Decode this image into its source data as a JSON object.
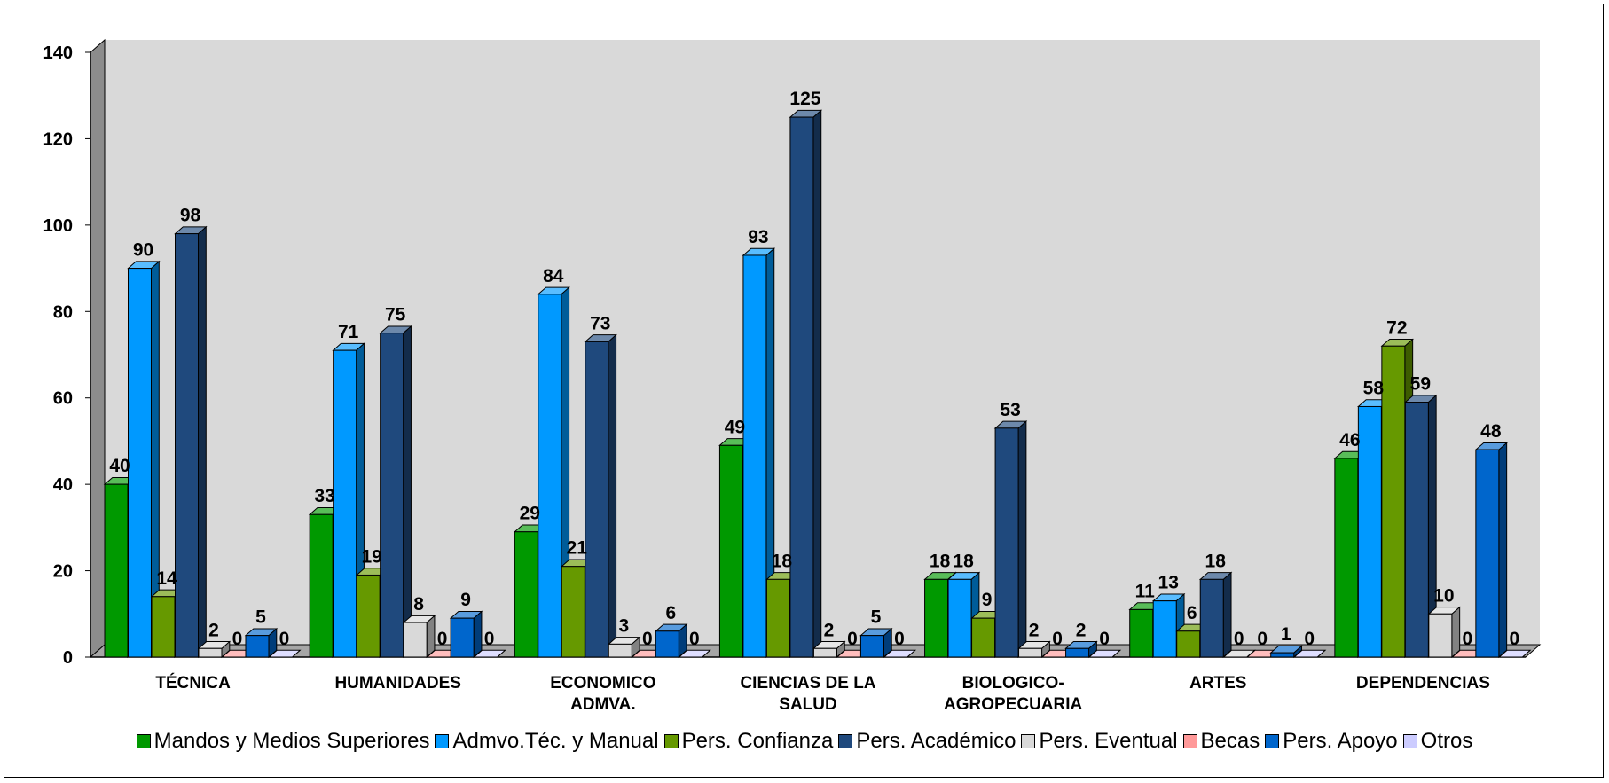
{
  "chart_data": {
    "type": "bar",
    "categories": [
      [
        "TÉCNICA"
      ],
      [
        "HUMANIDADES"
      ],
      [
        "ECONOMICO",
        "ADMVA."
      ],
      [
        "CIENCIAS DE LA",
        "SALUD"
      ],
      [
        "BIOLOGICO-",
        "AGROPECUARIA"
      ],
      [
        "ARTES"
      ],
      [
        "DEPENDENCIAS"
      ]
    ],
    "series": [
      {
        "name": "Mandos y Medios Superiores",
        "color": "#009900",
        "values": [
          40,
          33,
          29,
          49,
          18,
          11,
          46
        ]
      },
      {
        "name": "Admvo.Téc. y Manual",
        "color": "#0099ff",
        "values": [
          90,
          71,
          84,
          93,
          18,
          13,
          58
        ]
      },
      {
        "name": "Pers. Confianza",
        "color": "#669900",
        "values": [
          14,
          19,
          21,
          18,
          9,
          6,
          72
        ]
      },
      {
        "name": "Pers. Académico",
        "color": "#1f497d",
        "values": [
          98,
          75,
          73,
          125,
          53,
          18,
          59
        ]
      },
      {
        "name": "Pers. Eventual",
        "color": "#d9d9d9",
        "values": [
          2,
          8,
          3,
          2,
          2,
          0,
          10
        ]
      },
      {
        "name": "Becas",
        "color": "#ff9999",
        "values": [
          0,
          0,
          0,
          0,
          0,
          0,
          0
        ]
      },
      {
        "name": "Pers. Apoyo",
        "color": "#0066cc",
        "values": [
          5,
          9,
          6,
          5,
          2,
          1,
          48
        ]
      },
      {
        "name": "Otros",
        "color": "#ccccff",
        "values": [
          0,
          0,
          0,
          0,
          0,
          0,
          0
        ]
      }
    ],
    "y_ticks": [
      "0",
      "20",
      "40",
      "60",
      "80",
      "100",
      "120",
      "140"
    ],
    "ylim": [
      0,
      140
    ],
    "legend_position": "bottom",
    "plot_background": "#d9d9d9",
    "grid": false
  }
}
